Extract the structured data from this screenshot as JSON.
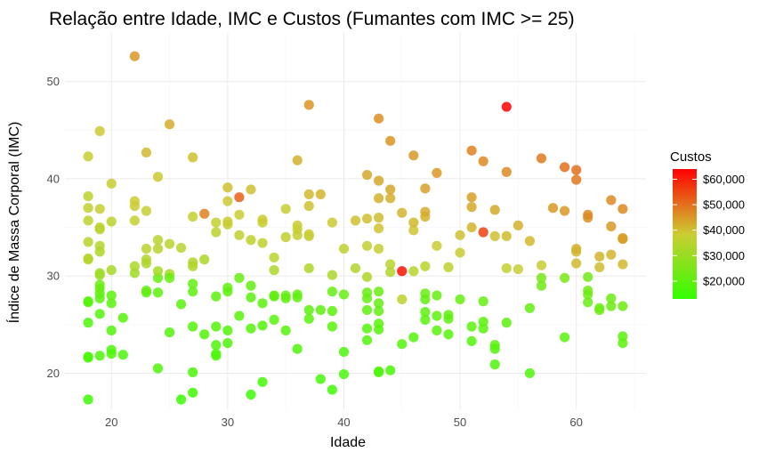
{
  "chart_data": {
    "type": "scatter",
    "title": "Relação entre Idade, IMC e Custos (Fumantes com IMC >= 25)",
    "xlabel": "Idade",
    "ylabel": "Índice de Massa Corporal (IMC)",
    "xlim": [
      16,
      66
    ],
    "ylim": [
      16.2,
      55
    ],
    "x_ticks": [
      20,
      30,
      40,
      50,
      60
    ],
    "y_ticks": [
      20,
      30,
      40,
      50
    ],
    "grid": true,
    "legend": {
      "title": "Custos",
      "position": "right",
      "type": "colorbar",
      "low_color": "#33ff00",
      "mid_color": "#cccc33",
      "high_color": "#ff0000",
      "range": [
        13000,
        64000
      ],
      "ticks": [
        {
          "value": 20000,
          "label": "$20,000"
        },
        {
          "value": 30000,
          "label": "$30,000"
        },
        {
          "value": 40000,
          "label": "$40,000"
        },
        {
          "value": 50000,
          "label": "$50,000"
        },
        {
          "value": 60000,
          "label": "$60,000"
        }
      ]
    },
    "points": [
      [
        18,
        17.3,
        14500
      ],
      [
        18,
        21.7,
        16500
      ],
      [
        18,
        21.6,
        16000
      ],
      [
        18,
        25.2,
        17500
      ],
      [
        18,
        27.3,
        18000
      ],
      [
        18,
        27.4,
        19000
      ],
      [
        18,
        31.7,
        35000
      ],
      [
        18,
        31.8,
        34000
      ],
      [
        18,
        33.5,
        35000
      ],
      [
        18,
        35.7,
        36000
      ],
      [
        18,
        37.0,
        37000
      ],
      [
        18,
        38.2,
        36000
      ],
      [
        18,
        42.3,
        38000
      ],
      [
        19,
        21.8,
        17000
      ],
      [
        19,
        26.1,
        18500
      ],
      [
        19,
        27.7,
        19500
      ],
      [
        19,
        28.2,
        20500
      ],
      [
        19,
        28.7,
        21000
      ],
      [
        19,
        29.1,
        22000
      ],
      [
        19,
        30.1,
        30000
      ],
      [
        19,
        30.3,
        31000
      ],
      [
        19,
        32.5,
        33000
      ],
      [
        19,
        33.1,
        34000
      ],
      [
        19,
        34.8,
        35500
      ],
      [
        19,
        35.0,
        36000
      ],
      [
        19,
        36.9,
        37000
      ],
      [
        19,
        44.9,
        39000
      ],
      [
        20,
        22.0,
        17500
      ],
      [
        20,
        22.4,
        17000
      ],
      [
        20,
        24.4,
        18000
      ],
      [
        20,
        27.2,
        19000
      ],
      [
        20,
        28.0,
        20000
      ],
      [
        20,
        30.6,
        32000
      ],
      [
        20,
        35.6,
        36000
      ],
      [
        20,
        39.5,
        38000
      ],
      [
        21,
        21.9,
        17500
      ],
      [
        21,
        25.7,
        19000
      ],
      [
        22,
        52.6,
        45000
      ],
      [
        22,
        30.3,
        31000
      ],
      [
        22,
        31.0,
        32500
      ],
      [
        22,
        35.7,
        37000
      ],
      [
        22,
        37.2,
        38000
      ],
      [
        22,
        37.7,
        38500
      ],
      [
        23,
        28.3,
        20000
      ],
      [
        23,
        28.5,
        21000
      ],
      [
        23,
        31.3,
        33000
      ],
      [
        23,
        31.7,
        34000
      ],
      [
        23,
        32.8,
        35500
      ],
      [
        23,
        36.7,
        37500
      ],
      [
        23,
        42.7,
        41000
      ],
      [
        24,
        20.5,
        17500
      ],
      [
        24,
        28.3,
        20000
      ],
      [
        24,
        29.8,
        21000
      ],
      [
        24,
        30.5,
        32000
      ],
      [
        24,
        32.8,
        34500
      ],
      [
        24,
        33.7,
        35500
      ],
      [
        24,
        40.2,
        39000
      ],
      [
        25,
        24.2,
        18000
      ],
      [
        25,
        30.2,
        31500
      ],
      [
        25,
        29.8,
        21500
      ],
      [
        25,
        33.3,
        35000
      ],
      [
        25,
        45.6,
        42500
      ],
      [
        26,
        17.3,
        14500
      ],
      [
        26,
        27.1,
        19000
      ],
      [
        26,
        32.9,
        35000
      ],
      [
        27,
        18.0,
        15500
      ],
      [
        27,
        20.1,
        17000
      ],
      [
        27,
        24.8,
        18500
      ],
      [
        27,
        28.4,
        20000
      ],
      [
        27,
        29.2,
        21000
      ],
      [
        27,
        31.0,
        33000
      ],
      [
        27,
        31.4,
        34000
      ],
      [
        27,
        36.1,
        37000
      ],
      [
        27,
        42.2,
        40000
      ],
      [
        28,
        24.0,
        18500
      ],
      [
        28,
        31.7,
        33500
      ],
      [
        28,
        36.4,
        48000
      ],
      [
        29,
        21.8,
        17500
      ],
      [
        29,
        22.0,
        17000
      ],
      [
        29,
        22.9,
        17500
      ],
      [
        29,
        24.8,
        18500
      ],
      [
        29,
        27.9,
        20000
      ],
      [
        29,
        34.5,
        36000
      ],
      [
        29,
        35.5,
        37000
      ],
      [
        30,
        23.1,
        17500
      ],
      [
        30,
        24.4,
        18500
      ],
      [
        30,
        28.4,
        20000
      ],
      [
        30,
        28.8,
        21000
      ],
      [
        30,
        35.3,
        37000
      ],
      [
        30,
        35.6,
        38000
      ],
      [
        30,
        37.7,
        39000
      ],
      [
        30,
        39.1,
        40000
      ],
      [
        31,
        25.9,
        19000
      ],
      [
        31,
        29.8,
        21500
      ],
      [
        31,
        34.2,
        36500
      ],
      [
        31,
        36.3,
        38000
      ],
      [
        31,
        38.1,
        52000
      ],
      [
        32,
        17.8,
        14500
      ],
      [
        32,
        24.6,
        18500
      ],
      [
        32,
        27.8,
        20000
      ],
      [
        32,
        29.0,
        21000
      ],
      [
        32,
        33.7,
        36000
      ],
      [
        32,
        38.9,
        40000
      ],
      [
        33,
        19.1,
        16000
      ],
      [
        33,
        24.9,
        18500
      ],
      [
        33,
        27.2,
        20000
      ],
      [
        33,
        33.4,
        36000
      ],
      [
        33,
        35.5,
        37000
      ],
      [
        33,
        35.8,
        38500
      ],
      [
        34,
        25.5,
        19000
      ],
      [
        34,
        27.9,
        20000
      ],
      [
        34,
        28.0,
        21000
      ],
      [
        34,
        30.6,
        33000
      ],
      [
        34,
        31.9,
        35000
      ],
      [
        35,
        24.4,
        18500
      ],
      [
        35,
        27.7,
        20000
      ],
      [
        35,
        28.0,
        21000
      ],
      [
        35,
        34.0,
        36500
      ],
      [
        35,
        36.9,
        37500
      ],
      [
        36,
        22.5,
        17500
      ],
      [
        36,
        27.8,
        20500
      ],
      [
        36,
        28.1,
        21000
      ],
      [
        36,
        34.2,
        37000
      ],
      [
        36,
        34.8,
        37500
      ],
      [
        36,
        35.2,
        38000
      ],
      [
        36,
        41.9,
        42000
      ],
      [
        37,
        25.6,
        19500
      ],
      [
        37,
        26.5,
        20000
      ],
      [
        37,
        30.8,
        33500
      ],
      [
        37,
        34.1,
        37000
      ],
      [
        37,
        34.3,
        38000
      ],
      [
        37,
        37.2,
        40000
      ],
      [
        37,
        38.4,
        41000
      ],
      [
        37,
        47.6,
        45500
      ],
      [
        38,
        19.4,
        16000
      ],
      [
        38,
        26.5,
        20000
      ],
      [
        38,
        38.4,
        41500
      ],
      [
        39,
        18.3,
        15500
      ],
      [
        39,
        24.8,
        19000
      ],
      [
        39,
        26.4,
        20000
      ],
      [
        39,
        28.4,
        21000
      ],
      [
        39,
        30.1,
        33000
      ],
      [
        39,
        35.5,
        39000
      ],
      [
        40,
        19.9,
        16500
      ],
      [
        40,
        22.2,
        17500
      ],
      [
        40,
        28.1,
        21500
      ],
      [
        40,
        32.8,
        36000
      ],
      [
        41,
        30.8,
        34000
      ],
      [
        41,
        35.7,
        40000
      ],
      [
        42,
        23.4,
        18000
      ],
      [
        42,
        24.6,
        18500
      ],
      [
        42,
        26.5,
        20000
      ],
      [
        42,
        27.7,
        21000
      ],
      [
        42,
        28.3,
        22000
      ],
      [
        42,
        29.9,
        33000
      ],
      [
        42,
        33.1,
        37000
      ],
      [
        42,
        35.9,
        40000
      ],
      [
        42,
        40.4,
        43000
      ],
      [
        43,
        20.1,
        16500
      ],
      [
        43,
        20.2,
        17000
      ],
      [
        43,
        24.5,
        18500
      ],
      [
        43,
        25.1,
        19500
      ],
      [
        43,
        26.4,
        20500
      ],
      [
        43,
        27.2,
        21000
      ],
      [
        43,
        28.4,
        22000
      ],
      [
        43,
        32.8,
        37500
      ],
      [
        43,
        34.9,
        39500
      ],
      [
        43,
        36.0,
        40500
      ],
      [
        43,
        38.0,
        42000
      ],
      [
        43,
        39.8,
        43000
      ],
      [
        43,
        46.2,
        46000
      ],
      [
        44,
        20.3,
        16500
      ],
      [
        44,
        30.4,
        34500
      ],
      [
        44,
        31.2,
        35500
      ],
      [
        44,
        38.0,
        42000
      ],
      [
        44,
        38.9,
        43000
      ],
      [
        44,
        43.9,
        45500
      ],
      [
        45,
        23.0,
        18000
      ],
      [
        45,
        27.6,
        36000
      ],
      [
        45,
        30.5,
        62000
      ],
      [
        45,
        36.5,
        41500
      ],
      [
        46,
        23.7,
        18500
      ],
      [
        46,
        30.5,
        35000
      ],
      [
        46,
        34.7,
        39500
      ],
      [
        46,
        35.5,
        41000
      ],
      [
        46,
        42.4,
        45000
      ],
      [
        47,
        25.5,
        19500
      ],
      [
        47,
        26.3,
        20000
      ],
      [
        47,
        27.6,
        21000
      ],
      [
        47,
        28.2,
        22000
      ],
      [
        47,
        31.0,
        35500
      ],
      [
        47,
        36.1,
        42000
      ],
      [
        47,
        36.6,
        42500
      ],
      [
        47,
        39.0,
        44000
      ],
      [
        48,
        24.4,
        19000
      ],
      [
        48,
        25.9,
        20000
      ],
      [
        48,
        28.0,
        21500
      ],
      [
        48,
        33.1,
        38000
      ],
      [
        48,
        40.6,
        45000
      ],
      [
        49,
        24.0,
        19000
      ],
      [
        49,
        25.6,
        20000
      ],
      [
        49,
        26.0,
        21000
      ],
      [
        49,
        30.9,
        36000
      ],
      [
        50,
        27.6,
        21500
      ],
      [
        50,
        32.4,
        38000
      ],
      [
        50,
        34.2,
        40000
      ],
      [
        51,
        23.3,
        18500
      ],
      [
        51,
        24.8,
        19500
      ],
      [
        51,
        35.0,
        41500
      ],
      [
        51,
        37.1,
        43000
      ],
      [
        51,
        38.1,
        44000
      ],
      [
        51,
        42.9,
        48000
      ],
      [
        52,
        24.6,
        19500
      ],
      [
        52,
        25.3,
        20000
      ],
      [
        52,
        27.4,
        21500
      ],
      [
        52,
        34.5,
        56000
      ],
      [
        52,
        41.8,
        47000
      ],
      [
        53,
        20.9,
        17500
      ],
      [
        53,
        22.5,
        18500
      ],
      [
        53,
        22.9,
        19000
      ],
      [
        53,
        34.1,
        40000
      ],
      [
        53,
        36.8,
        43000
      ],
      [
        54,
        25.2,
        20000
      ],
      [
        54,
        30.8,
        37000
      ],
      [
        54,
        34.1,
        40500
      ],
      [
        54,
        40.7,
        47000
      ],
      [
        54,
        47.4,
        63500
      ],
      [
        55,
        30.7,
        37500
      ],
      [
        55,
        35.2,
        42000
      ],
      [
        56,
        20.0,
        17500
      ],
      [
        56,
        26.7,
        21000
      ],
      [
        56,
        33.6,
        41000
      ],
      [
        57,
        29.0,
        23000
      ],
      [
        57,
        29.8,
        24000
      ],
      [
        57,
        31.1,
        38000
      ],
      [
        57,
        42.1,
        49000
      ],
      [
        58,
        37.0,
        45000
      ],
      [
        59,
        23.7,
        19500
      ],
      [
        59,
        29.8,
        25000
      ],
      [
        59,
        36.7,
        45000
      ],
      [
        59,
        41.2,
        50000
      ],
      [
        60,
        32.5,
        41000
      ],
      [
        60,
        32.8,
        42000
      ],
      [
        60,
        31.3,
        41000
      ],
      [
        60,
        39.9,
        49000
      ],
      [
        60,
        40.9,
        50000
      ],
      [
        61,
        27.3,
        22000
      ],
      [
        61,
        28.1,
        22500
      ],
      [
        61,
        28.5,
        23000
      ],
      [
        61,
        29.9,
        23500
      ],
      [
        61,
        36.0,
        46000
      ],
      [
        61,
        36.3,
        47000
      ],
      [
        62,
        26.5,
        22000
      ],
      [
        62,
        26.7,
        22500
      ],
      [
        62,
        30.9,
        40500
      ],
      [
        62,
        32.0,
        41500
      ],
      [
        63,
        26.9,
        22500
      ],
      [
        63,
        27.7,
        23000
      ],
      [
        63,
        32.2,
        41500
      ],
      [
        63,
        35.1,
        45000
      ],
      [
        63,
        37.8,
        47000
      ],
      [
        64,
        23.1,
        19500
      ],
      [
        64,
        23.8,
        20000
      ],
      [
        64,
        26.9,
        22500
      ],
      [
        64,
        31.2,
        41000
      ],
      [
        64,
        33.8,
        44000
      ],
      [
        64,
        33.9,
        44500
      ],
      [
        64,
        36.9,
        47000
      ]
    ]
  }
}
